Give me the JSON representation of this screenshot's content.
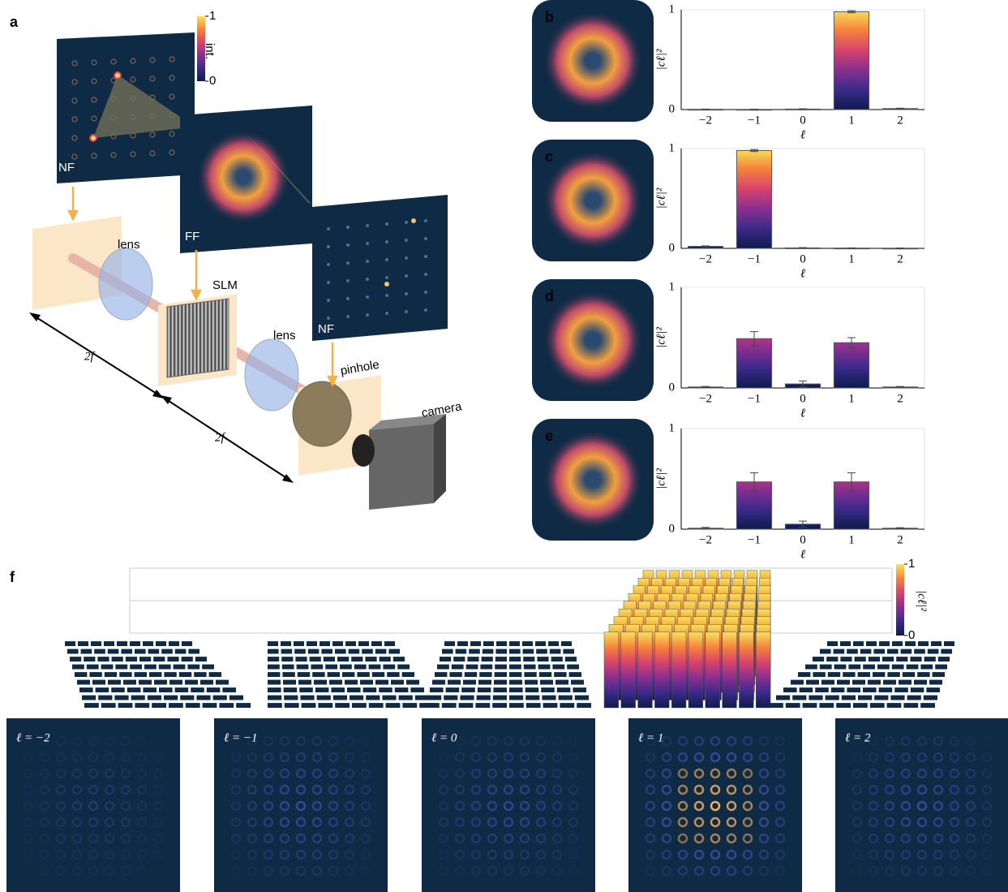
{
  "panel_labels": [
    "a",
    "b",
    "c",
    "d",
    "e",
    "f"
  ],
  "colormap": [
    "#0d1b4c",
    "#3b2a8a",
    "#8b2f8f",
    "#d9436b",
    "#f5843a",
    "#f7e35c"
  ],
  "setup": {
    "colorbar": {
      "label": "int.",
      "ticks": [
        0,
        1
      ]
    },
    "planes": [
      "NF",
      "FF",
      "NF"
    ],
    "components": [
      "lens",
      "SLM",
      "lens",
      "pinhole",
      "camera"
    ],
    "distances": [
      "2f",
      "2f"
    ]
  },
  "chart_data": [
    {
      "type": "bar",
      "categories": [
        "−2",
        "−1",
        "0",
        "1",
        "2"
      ],
      "values": [
        0.003,
        0.002,
        0.005,
        0.98,
        0.01
      ],
      "errors": [
        0.002,
        0.002,
        0.003,
        0.01,
        0.004
      ],
      "ylim": [
        0,
        1
      ],
      "yticks": [
        0,
        1
      ],
      "grid": true,
      "xlabel": "ℓ",
      "ylabel": "|cℓ|²"
    },
    {
      "type": "bar",
      "categories": [
        "−2",
        "−1",
        "0",
        "1",
        "2"
      ],
      "values": [
        0.02,
        0.98,
        0.005,
        0.003,
        0.002
      ],
      "errors": [
        0.005,
        0.01,
        0.003,
        0.002,
        0.002
      ],
      "ylim": [
        0,
        1
      ],
      "yticks": [
        0,
        1
      ],
      "grid": true,
      "xlabel": "ℓ",
      "ylabel": "|cℓ|²"
    },
    {
      "type": "bar",
      "categories": [
        "−2",
        "−1",
        "0",
        "1",
        "2"
      ],
      "values": [
        0.01,
        0.49,
        0.04,
        0.45,
        0.01
      ],
      "errors": [
        0.005,
        0.07,
        0.03,
        0.05,
        0.005
      ],
      "ylim": [
        0,
        1
      ],
      "yticks": [
        0,
        1
      ],
      "grid": true,
      "xlabel": "ℓ",
      "ylabel": "|cℓ|²"
    },
    {
      "type": "bar",
      "categories": [
        "−2",
        "−1",
        "0",
        "1",
        "2"
      ],
      "values": [
        0.01,
        0.47,
        0.05,
        0.47,
        0.01
      ],
      "errors": [
        0.008,
        0.09,
        0.03,
        0.09,
        0.005
      ],
      "ylim": [
        0,
        1
      ],
      "yticks": [
        0,
        1
      ],
      "grid": true,
      "xlabel": "ℓ",
      "ylabel": "|cℓ|²"
    }
  ],
  "panel_f": {
    "colorbar": {
      "label": "|cℓ|²",
      "ticks": [
        0,
        1
      ]
    },
    "images": [
      "ℓ = −2",
      "ℓ = −1",
      "ℓ = 0",
      "ℓ = 1",
      "ℓ = 2"
    ],
    "heights": [
      0.01,
      0.01,
      0.01,
      0.98,
      0.01
    ]
  }
}
